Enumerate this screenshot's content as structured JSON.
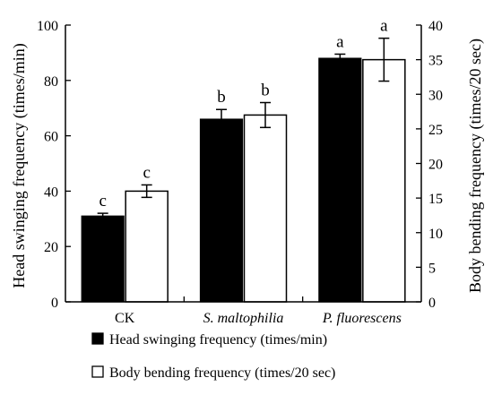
{
  "chart_data": {
    "type": "bar",
    "categories": [
      "CK",
      "S. maltophilia",
      "P. fluorescens"
    ],
    "category_italic": [
      false,
      true,
      true
    ],
    "ylabel_left": "Head swinging frequency (times/min)",
    "ylabel_right": "Body bending frequency (times/20 sec)",
    "ylim_left": [
      0,
      100
    ],
    "ylim_right": [
      0,
      40
    ],
    "yticks_left": [
      0,
      20,
      40,
      60,
      80,
      100
    ],
    "yticks_right": [
      0,
      5,
      10,
      15,
      20,
      25,
      30,
      35,
      40
    ],
    "grid": false,
    "legend_position": "bottom",
    "series": [
      {
        "name": "Head swinging frequency (times/min)",
        "axis": "left",
        "fill": "#000000",
        "values": [
          31,
          66,
          88
        ],
        "errors": [
          1,
          3.5,
          1.5
        ],
        "significance": [
          "c",
          "b",
          "a"
        ]
      },
      {
        "name": "Body bending frequency (times/20 sec)",
        "axis": "right",
        "fill": "#ffffff",
        "values": [
          16,
          27,
          35
        ],
        "errors": [
          0.9,
          1.8,
          3.1
        ],
        "significance": [
          "c",
          "b",
          "a"
        ]
      }
    ]
  }
}
